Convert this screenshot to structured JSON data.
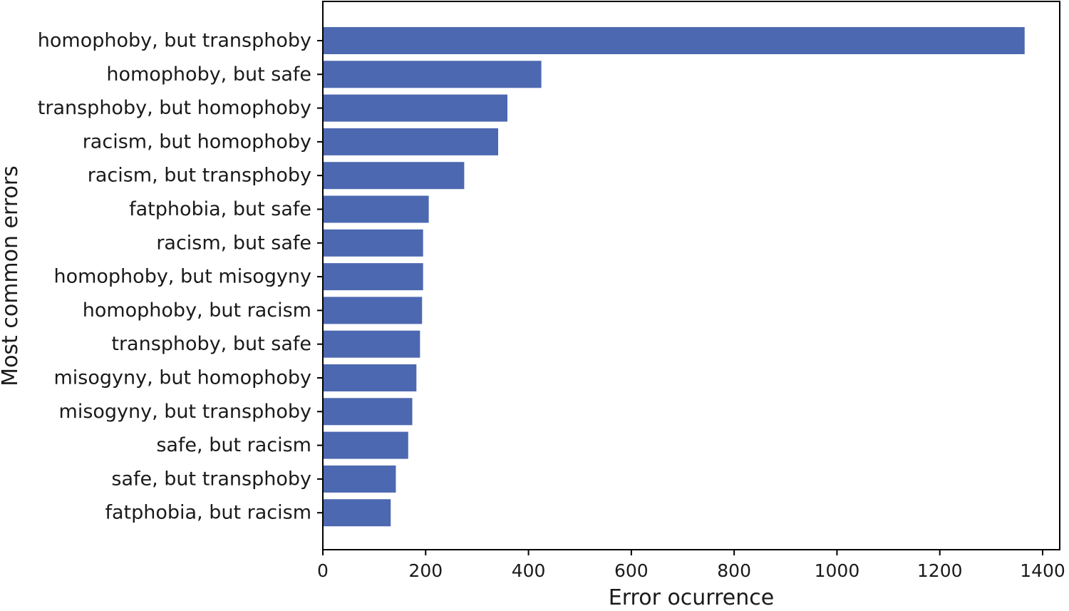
{
  "chart_data": {
    "type": "bar",
    "orientation": "horizontal",
    "xlabel": "Error ocurrence",
    "ylabel": "Most common errors",
    "xlim": [
      0,
      1420
    ],
    "xticks": [
      0,
      200,
      400,
      600,
      800,
      1000,
      1200,
      1400
    ],
    "grid": false,
    "bar_color": "#4c68b0",
    "categories": [
      "homophoby, but transphoby",
      "homophoby, but safe",
      "transphoby, but homophoby",
      "racism, but homophoby",
      "racism, but transphoby",
      "fatphobia, but safe",
      "racism, but safe",
      "homophoby, but misogyny",
      "homophoby, but racism",
      "transphoby, but safe",
      "misogyny, but homophoby",
      "misogyny, but transphoby",
      "safe, but racism",
      "safe, but transphoby",
      "fatphobia, but racism"
    ],
    "values": [
      1365,
      425,
      359,
      341,
      275,
      206,
      195,
      195,
      193,
      189,
      182,
      174,
      166,
      142,
      132
    ]
  }
}
